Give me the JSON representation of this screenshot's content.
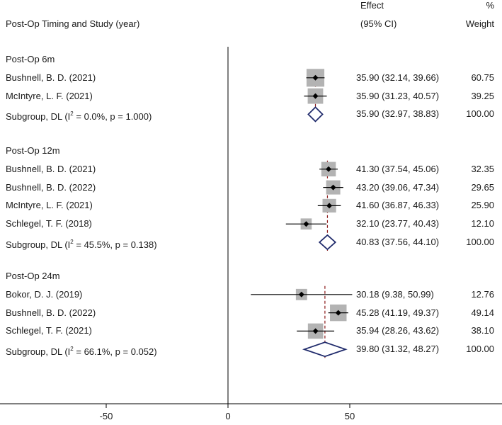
{
  "header": {
    "label_col": "Post-Op Timing and Study (year)",
    "effect_top": "Effect",
    "effect_bottom": "(95% CI)",
    "weight_top": "%",
    "weight_bottom": "Weight"
  },
  "chart_data": {
    "type": "forest",
    "xlim": [
      -93,
      100
    ],
    "xticks": [
      -50,
      0,
      50
    ],
    "xtick_labels": [
      "-50",
      "0",
      "50"
    ],
    "null_line": 0,
    "groups": [
      {
        "title": "Post-Op 6m",
        "overall": 35.9,
        "studies": [
          {
            "label": "Bushnell, B. D. (2021)",
            "est": 35.9,
            "lo": 32.14,
            "hi": 39.66,
            "ci_text": "35.90 (32.14, 39.66)",
            "weight": "60.75",
            "w": 60.75
          },
          {
            "label": "McIntyre, L. F. (2021)",
            "est": 35.9,
            "lo": 31.23,
            "hi": 40.57,
            "ci_text": "35.90 (31.23, 40.57)",
            "weight": "39.25",
            "w": 39.25
          }
        ],
        "subgroup": {
          "label_pre": "Subgroup, DL (I",
          "label_sup": "2",
          "label_post": " = 0.0%, p = 1.000)",
          "est": 35.9,
          "lo": 32.97,
          "hi": 38.83,
          "ci_text": "35.90 (32.97, 38.83)",
          "weight": "100.00"
        }
      },
      {
        "title": "Post-Op 12m",
        "overall": 40.83,
        "studies": [
          {
            "label": "Bushnell, B. D. (2021)",
            "est": 41.3,
            "lo": 37.54,
            "hi": 45.06,
            "ci_text": "41.30 (37.54, 45.06)",
            "weight": "32.35",
            "w": 32.35
          },
          {
            "label": "Bushnell, B. D. (2022)",
            "est": 43.2,
            "lo": 39.06,
            "hi": 47.34,
            "ci_text": "43.20 (39.06, 47.34)",
            "weight": "29.65",
            "w": 29.65
          },
          {
            "label": "McIntyre, L. F. (2021)",
            "est": 41.6,
            "lo": 36.87,
            "hi": 46.33,
            "ci_text": "41.60 (36.87, 46.33)",
            "weight": "25.90",
            "w": 25.9
          },
          {
            "label": "Schlegel, T. F. (2018)",
            "est": 32.1,
            "lo": 23.77,
            "hi": 40.43,
            "ci_text": "32.10 (23.77, 40.43)",
            "weight": "12.10",
            "w": 12.1
          }
        ],
        "subgroup": {
          "label_pre": "Subgroup, DL (I",
          "label_sup": "2",
          "label_post": " = 45.5%, p = 0.138)",
          "est": 40.83,
          "lo": 37.56,
          "hi": 44.1,
          "ci_text": "40.83 (37.56, 44.10)",
          "weight": "100.00"
        }
      },
      {
        "title": "Post-Op 24m",
        "overall": 39.8,
        "studies": [
          {
            "label": "Bokor, D. J. (2019)",
            "est": 30.18,
            "lo": 9.38,
            "hi": 50.99,
            "ci_text": "30.18 (9.38, 50.99)",
            "weight": "12.76",
            "w": 12.76
          },
          {
            "label": "Bushnell, B. D. (2022)",
            "est": 45.28,
            "lo": 41.19,
            "hi": 49.37,
            "ci_text": "45.28 (41.19, 49.37)",
            "weight": "49.14",
            "w": 49.14
          },
          {
            "label": "Schlegel, T. F. (2021)",
            "est": 35.94,
            "lo": 28.26,
            "hi": 43.62,
            "ci_text": "35.94 (28.26, 43.62)",
            "weight": "38.10",
            "w": 38.1
          }
        ],
        "subgroup": {
          "label_pre": "Subgroup, DL (I",
          "label_sup": "2",
          "label_post": " = 66.1%, p = 0.052)",
          "est": 39.8,
          "lo": 31.32,
          "hi": 48.27,
          "ci_text": "39.80 (31.32, 48.27)",
          "weight": "100.00"
        }
      }
    ],
    "colors": {
      "diamond": "#1f2a6b",
      "box": "#b3b3b3",
      "ref_line": "#8b1a1a",
      "axis": "#000000"
    }
  }
}
